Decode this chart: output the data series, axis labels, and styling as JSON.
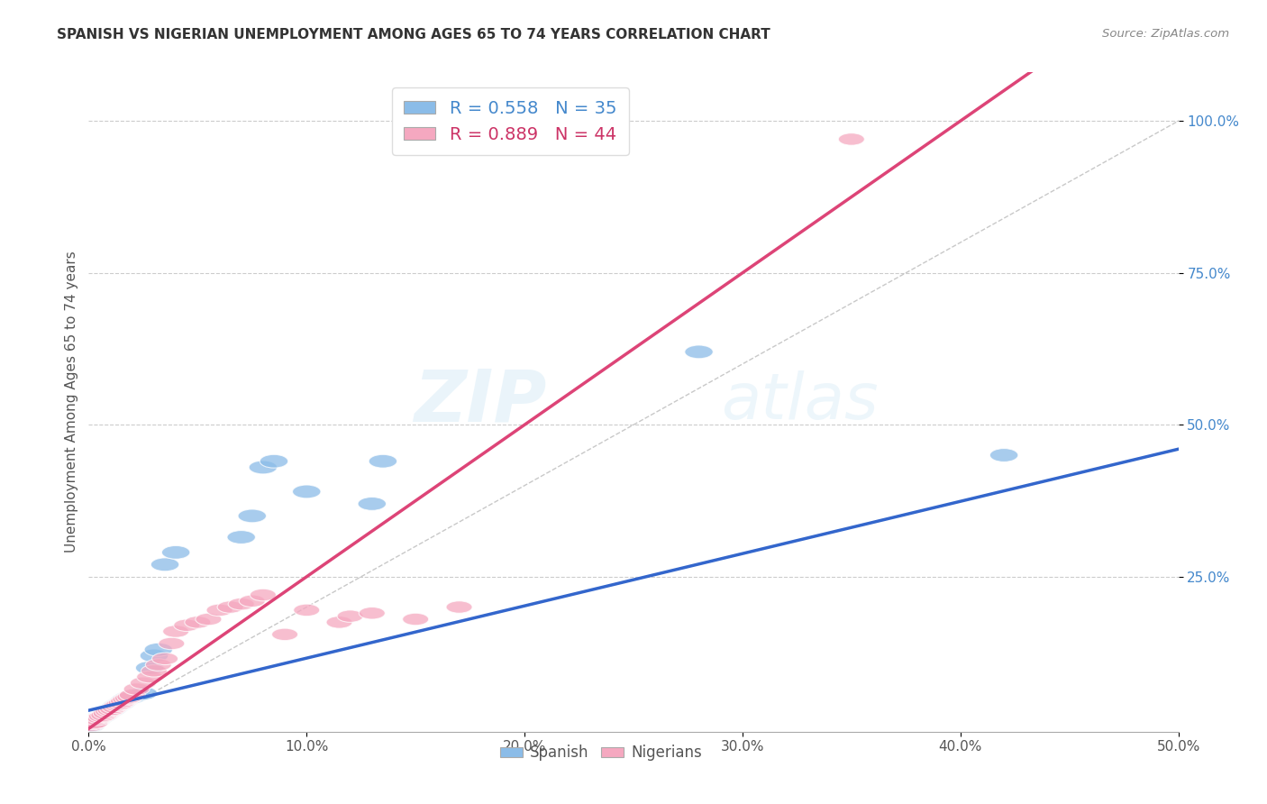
{
  "title": "SPANISH VS NIGERIAN UNEMPLOYMENT AMONG AGES 65 TO 74 YEARS CORRELATION CHART",
  "source": "Source: ZipAtlas.com",
  "ylabel": "Unemployment Among Ages 65 to 74 years",
  "xlim": [
    0.0,
    0.5
  ],
  "ylim": [
    -0.005,
    1.08
  ],
  "xticks": [
    0.0,
    0.1,
    0.2,
    0.3,
    0.4,
    0.5
  ],
  "xticklabels": [
    "0.0%",
    "10.0%",
    "20.0%",
    "30.0%",
    "40.0%",
    "50.0%"
  ],
  "yticks": [
    0.25,
    0.5,
    0.75,
    1.0
  ],
  "yticklabels": [
    "25.0%",
    "50.0%",
    "75.0%",
    "100.0%"
  ],
  "spanish_color": "#8bbce8",
  "nigerian_color": "#f5a8c0",
  "spanish_line_color": "#3366cc",
  "nigerian_line_color": "#dd4477",
  "ref_line_color": "#bbbbbb",
  "legend_r_spanish": "R = 0.558",
  "legend_n_spanish": "N = 35",
  "legend_r_nigerian": "R = 0.889",
  "legend_n_nigerian": "N = 44",
  "watermark_zip": "ZIP",
  "watermark_atlas": "atlas",
  "spanish_x": [
    0.001,
    0.002,
    0.003,
    0.004,
    0.005,
    0.006,
    0.007,
    0.008,
    0.009,
    0.01,
    0.011,
    0.012,
    0.013,
    0.014,
    0.015,
    0.016,
    0.017,
    0.018,
    0.02,
    0.022,
    0.025,
    0.028,
    0.03,
    0.032,
    0.035,
    0.04,
    0.07,
    0.075,
    0.08,
    0.085,
    0.1,
    0.13,
    0.135,
    0.28,
    0.42
  ],
  "spanish_y": [
    0.005,
    0.01,
    0.012,
    0.015,
    0.018,
    0.02,
    0.022,
    0.025,
    0.028,
    0.03,
    0.032,
    0.035,
    0.038,
    0.04,
    0.042,
    0.045,
    0.048,
    0.05,
    0.052,
    0.055,
    0.058,
    0.1,
    0.12,
    0.13,
    0.27,
    0.29,
    0.315,
    0.35,
    0.43,
    0.44,
    0.39,
    0.37,
    0.44,
    0.62,
    0.45
  ],
  "nigerian_x": [
    0.001,
    0.002,
    0.003,
    0.004,
    0.005,
    0.006,
    0.007,
    0.008,
    0.009,
    0.01,
    0.011,
    0.012,
    0.013,
    0.014,
    0.015,
    0.016,
    0.017,
    0.018,
    0.019,
    0.02,
    0.022,
    0.025,
    0.028,
    0.03,
    0.032,
    0.035,
    0.038,
    0.04,
    0.045,
    0.05,
    0.055,
    0.06,
    0.065,
    0.07,
    0.075,
    0.08,
    0.09,
    0.1,
    0.115,
    0.12,
    0.13,
    0.15,
    0.17,
    0.35
  ],
  "nigerian_y": [
    0.005,
    0.008,
    0.01,
    0.015,
    0.018,
    0.02,
    0.022,
    0.025,
    0.028,
    0.03,
    0.032,
    0.035,
    0.038,
    0.04,
    0.042,
    0.045,
    0.048,
    0.05,
    0.052,
    0.055,
    0.065,
    0.075,
    0.085,
    0.095,
    0.105,
    0.115,
    0.14,
    0.16,
    0.17,
    0.175,
    0.18,
    0.195,
    0.2,
    0.205,
    0.21,
    0.22,
    0.155,
    0.195,
    0.175,
    0.185,
    0.19,
    0.18,
    0.2,
    0.97
  ],
  "sp_line_x0": 0.0,
  "sp_line_y0": 0.03,
  "sp_line_x1": 0.5,
  "sp_line_y1": 0.46,
  "ni_line_x0": 0.0,
  "ni_line_y0": 0.0,
  "ni_line_x1": 0.4,
  "ni_line_y1": 1.0
}
